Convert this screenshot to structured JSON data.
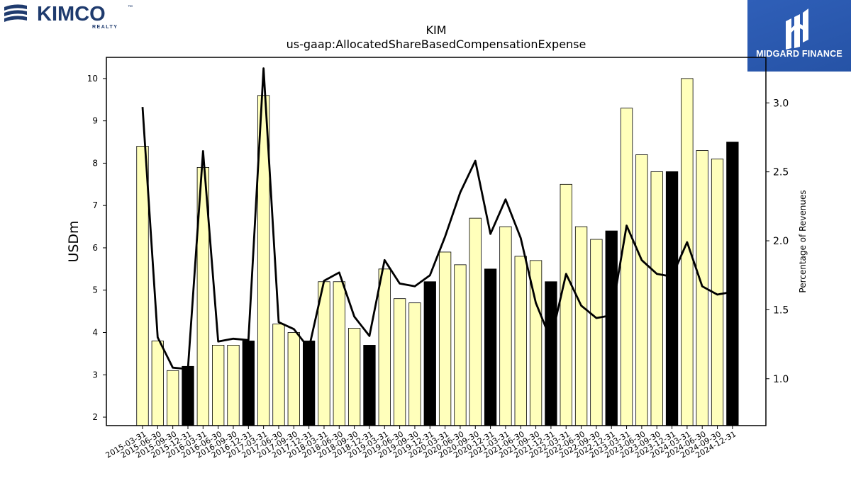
{
  "brand": {
    "left_logo_name": "KIMCO",
    "left_logo_tagline": "REALTY",
    "left_logo_tm": "™",
    "right_logo_name": "MIDGARD FINANCE"
  },
  "chart_data": {
    "type": "bar",
    "title": "KIM",
    "subtitle": "us-gaap:AllocatedShareBasedCompensationExpense",
    "ylabel": "USDm",
    "y2label": "Percentage of Revenues",
    "ylim": [
      1.8,
      10.5
    ],
    "y2lim": [
      0.66,
      3.33
    ],
    "yticks": [
      2,
      3,
      4,
      5,
      6,
      7,
      8,
      9,
      10
    ],
    "y2ticks": [
      1.0,
      1.5,
      2.0,
      2.5,
      3.0
    ],
    "grid": false,
    "bar_colors": {
      "quarter": "#ffffbb",
      "year_end": "#000000"
    },
    "line_color": "#000000",
    "categories": [
      "2015-03-31",
      "2015-06-30",
      "2015-09-30",
      "2015-12-31",
      "2016-03-31",
      "2016-06-30",
      "2016-09-30",
      "2016-12-31",
      "2017-03-31",
      "2017-06-30",
      "2017-09-30",
      "2017-12-31",
      "2018-03-31",
      "2018-06-30",
      "2018-09-30",
      "2018-12-31",
      "2019-03-31",
      "2019-06-30",
      "2019-09-30",
      "2019-12-31",
      "2020-03-31",
      "2020-06-30",
      "2020-09-30",
      "2020-12-31",
      "2021-03-31",
      "2021-06-30",
      "2021-09-30",
      "2021-12-31",
      "2022-03-31",
      "2022-06-30",
      "2022-09-30",
      "2022-12-31",
      "2023-03-31",
      "2023-06-30",
      "2023-09-30",
      "2023-12-31",
      "2024-03-31",
      "2024-06-30",
      "2024-09-30",
      "2024-12-31"
    ],
    "series": [
      {
        "values": [
          8.4,
          3.8,
          3.1,
          3.2,
          7.9,
          3.7,
          3.7,
          3.8,
          9.6,
          4.2,
          4.0,
          3.8,
          5.2,
          5.2,
          4.1,
          3.7,
          5.5,
          4.8,
          4.7,
          5.2,
          5.9,
          5.6,
          6.7,
          5.5,
          6.5,
          5.8,
          5.7,
          5.2,
          7.5,
          6.5,
          6.2,
          6.4,
          9.3,
          8.2,
          7.8,
          7.8,
          10.0,
          8.3,
          8.1,
          8.5
        ]
      },
      {
        "axis": "right",
        "values": [
          2.97,
          1.3,
          1.08,
          1.07,
          2.65,
          1.27,
          1.29,
          1.28,
          3.25,
          1.41,
          1.36,
          1.22,
          1.71,
          1.77,
          1.45,
          1.31,
          1.86,
          1.69,
          1.67,
          1.75,
          2.03,
          2.35,
          2.58,
          2.05,
          2.3,
          2.02,
          1.55,
          1.28,
          1.76,
          1.53,
          1.44,
          1.46,
          2.11,
          1.86,
          1.76,
          1.74,
          1.99,
          1.67,
          1.61,
          1.63
        ]
      }
    ]
  }
}
